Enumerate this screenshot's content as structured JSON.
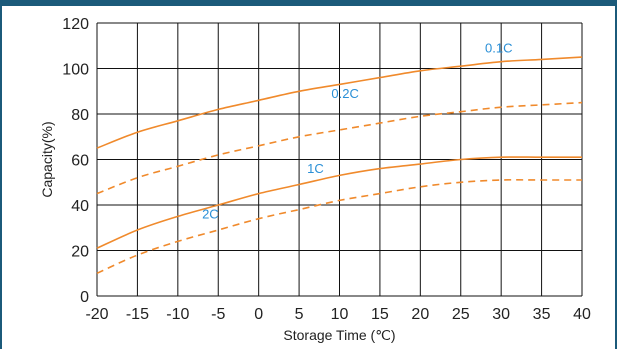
{
  "chart_data": {
    "type": "line",
    "xlabel": "Storage Time (℃)",
    "ylabel": "Capacity(%)",
    "xlim": [
      -20,
      40
    ],
    "ylim": [
      0,
      120
    ],
    "x_ticks": [
      -20,
      -15,
      -10,
      -5,
      0,
      5,
      10,
      15,
      20,
      25,
      30,
      35,
      40
    ],
    "y_ticks": [
      0,
      20,
      40,
      60,
      80,
      100,
      120
    ],
    "grid": true,
    "colors": {
      "line": "#f08a2c",
      "label": "#2a8fd6",
      "grid": "#111111"
    },
    "series": [
      {
        "name": "0.1C",
        "style": "solid",
        "x": [
          -20,
          -15,
          -10,
          -5,
          0,
          5,
          10,
          15,
          20,
          25,
          30,
          35,
          40
        ],
        "y": [
          65,
          72,
          77,
          82,
          86,
          90,
          93,
          96,
          99,
          101,
          103,
          104,
          105
        ],
        "label_at": [
          28,
          107
        ]
      },
      {
        "name": "0.2C",
        "style": "dashed",
        "x": [
          -20,
          -15,
          -10,
          -5,
          0,
          5,
          10,
          15,
          20,
          25,
          30,
          35,
          40
        ],
        "y": [
          45,
          52,
          57,
          62,
          66,
          70,
          73,
          76,
          79,
          81,
          83,
          84,
          85
        ],
        "label_at": [
          9,
          87
        ]
      },
      {
        "name": "1C",
        "style": "solid",
        "x": [
          -20,
          -15,
          -10,
          -5,
          0,
          5,
          10,
          15,
          20,
          25,
          30,
          35,
          40
        ],
        "y": [
          21,
          29,
          35,
          40,
          45,
          49,
          53,
          56,
          58,
          60,
          61,
          61,
          61
        ],
        "label_at": [
          6,
          54
        ]
      },
      {
        "name": "2C",
        "style": "dashed",
        "x": [
          -20,
          -15,
          -10,
          -5,
          0,
          5,
          10,
          15,
          20,
          25,
          30,
          35,
          40
        ],
        "y": [
          10,
          18,
          24,
          29,
          34,
          38,
          42,
          45,
          48,
          50,
          51,
          51,
          51
        ],
        "label_at": [
          -7,
          34
        ]
      }
    ]
  }
}
